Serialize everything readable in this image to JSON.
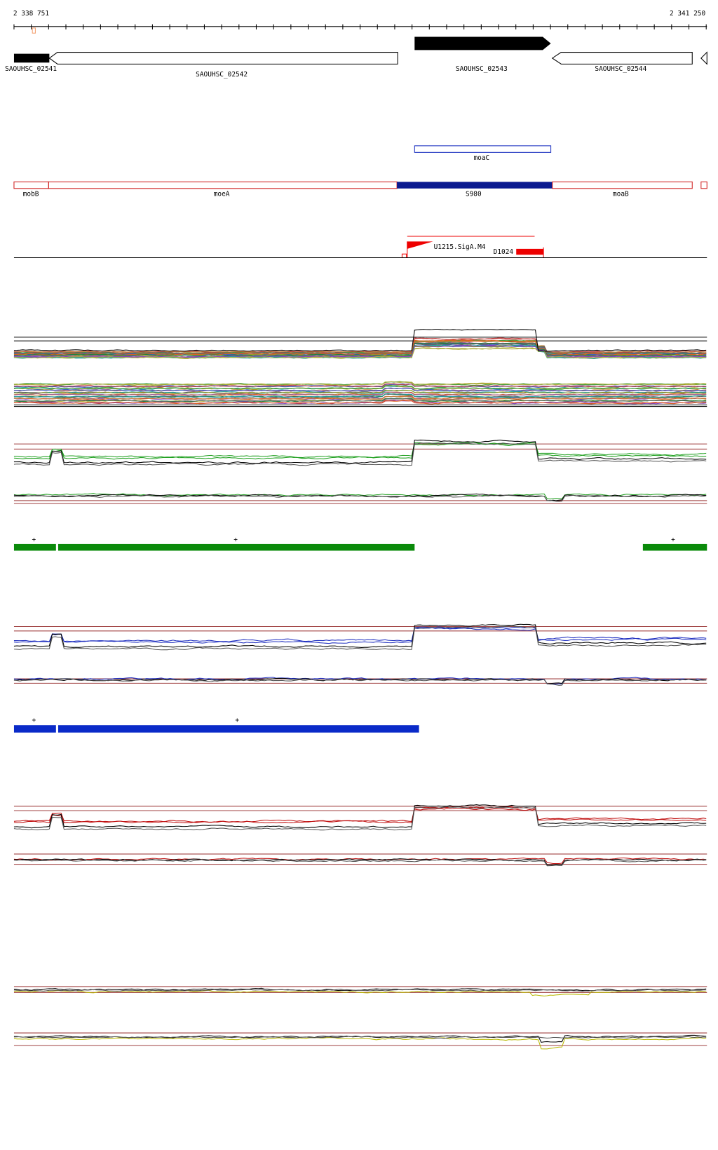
{
  "ruler": {
    "start": "2 338 751",
    "end": "2 341 250"
  },
  "genes": [
    "SAOUHSC_02541",
    "SAOUHSC_02542",
    "SAOUHSC_02543",
    "SAOUHSC_02544"
  ],
  "feature": "moaC",
  "operons": [
    "mobB",
    "moeA",
    "S980",
    "moaB"
  ],
  "promoter": "U1215.SigA.M4",
  "terminator": "D1024",
  "green_marks": [
    "+",
    "+",
    "+"
  ],
  "blue_marks": [
    "+",
    "+"
  ]
}
